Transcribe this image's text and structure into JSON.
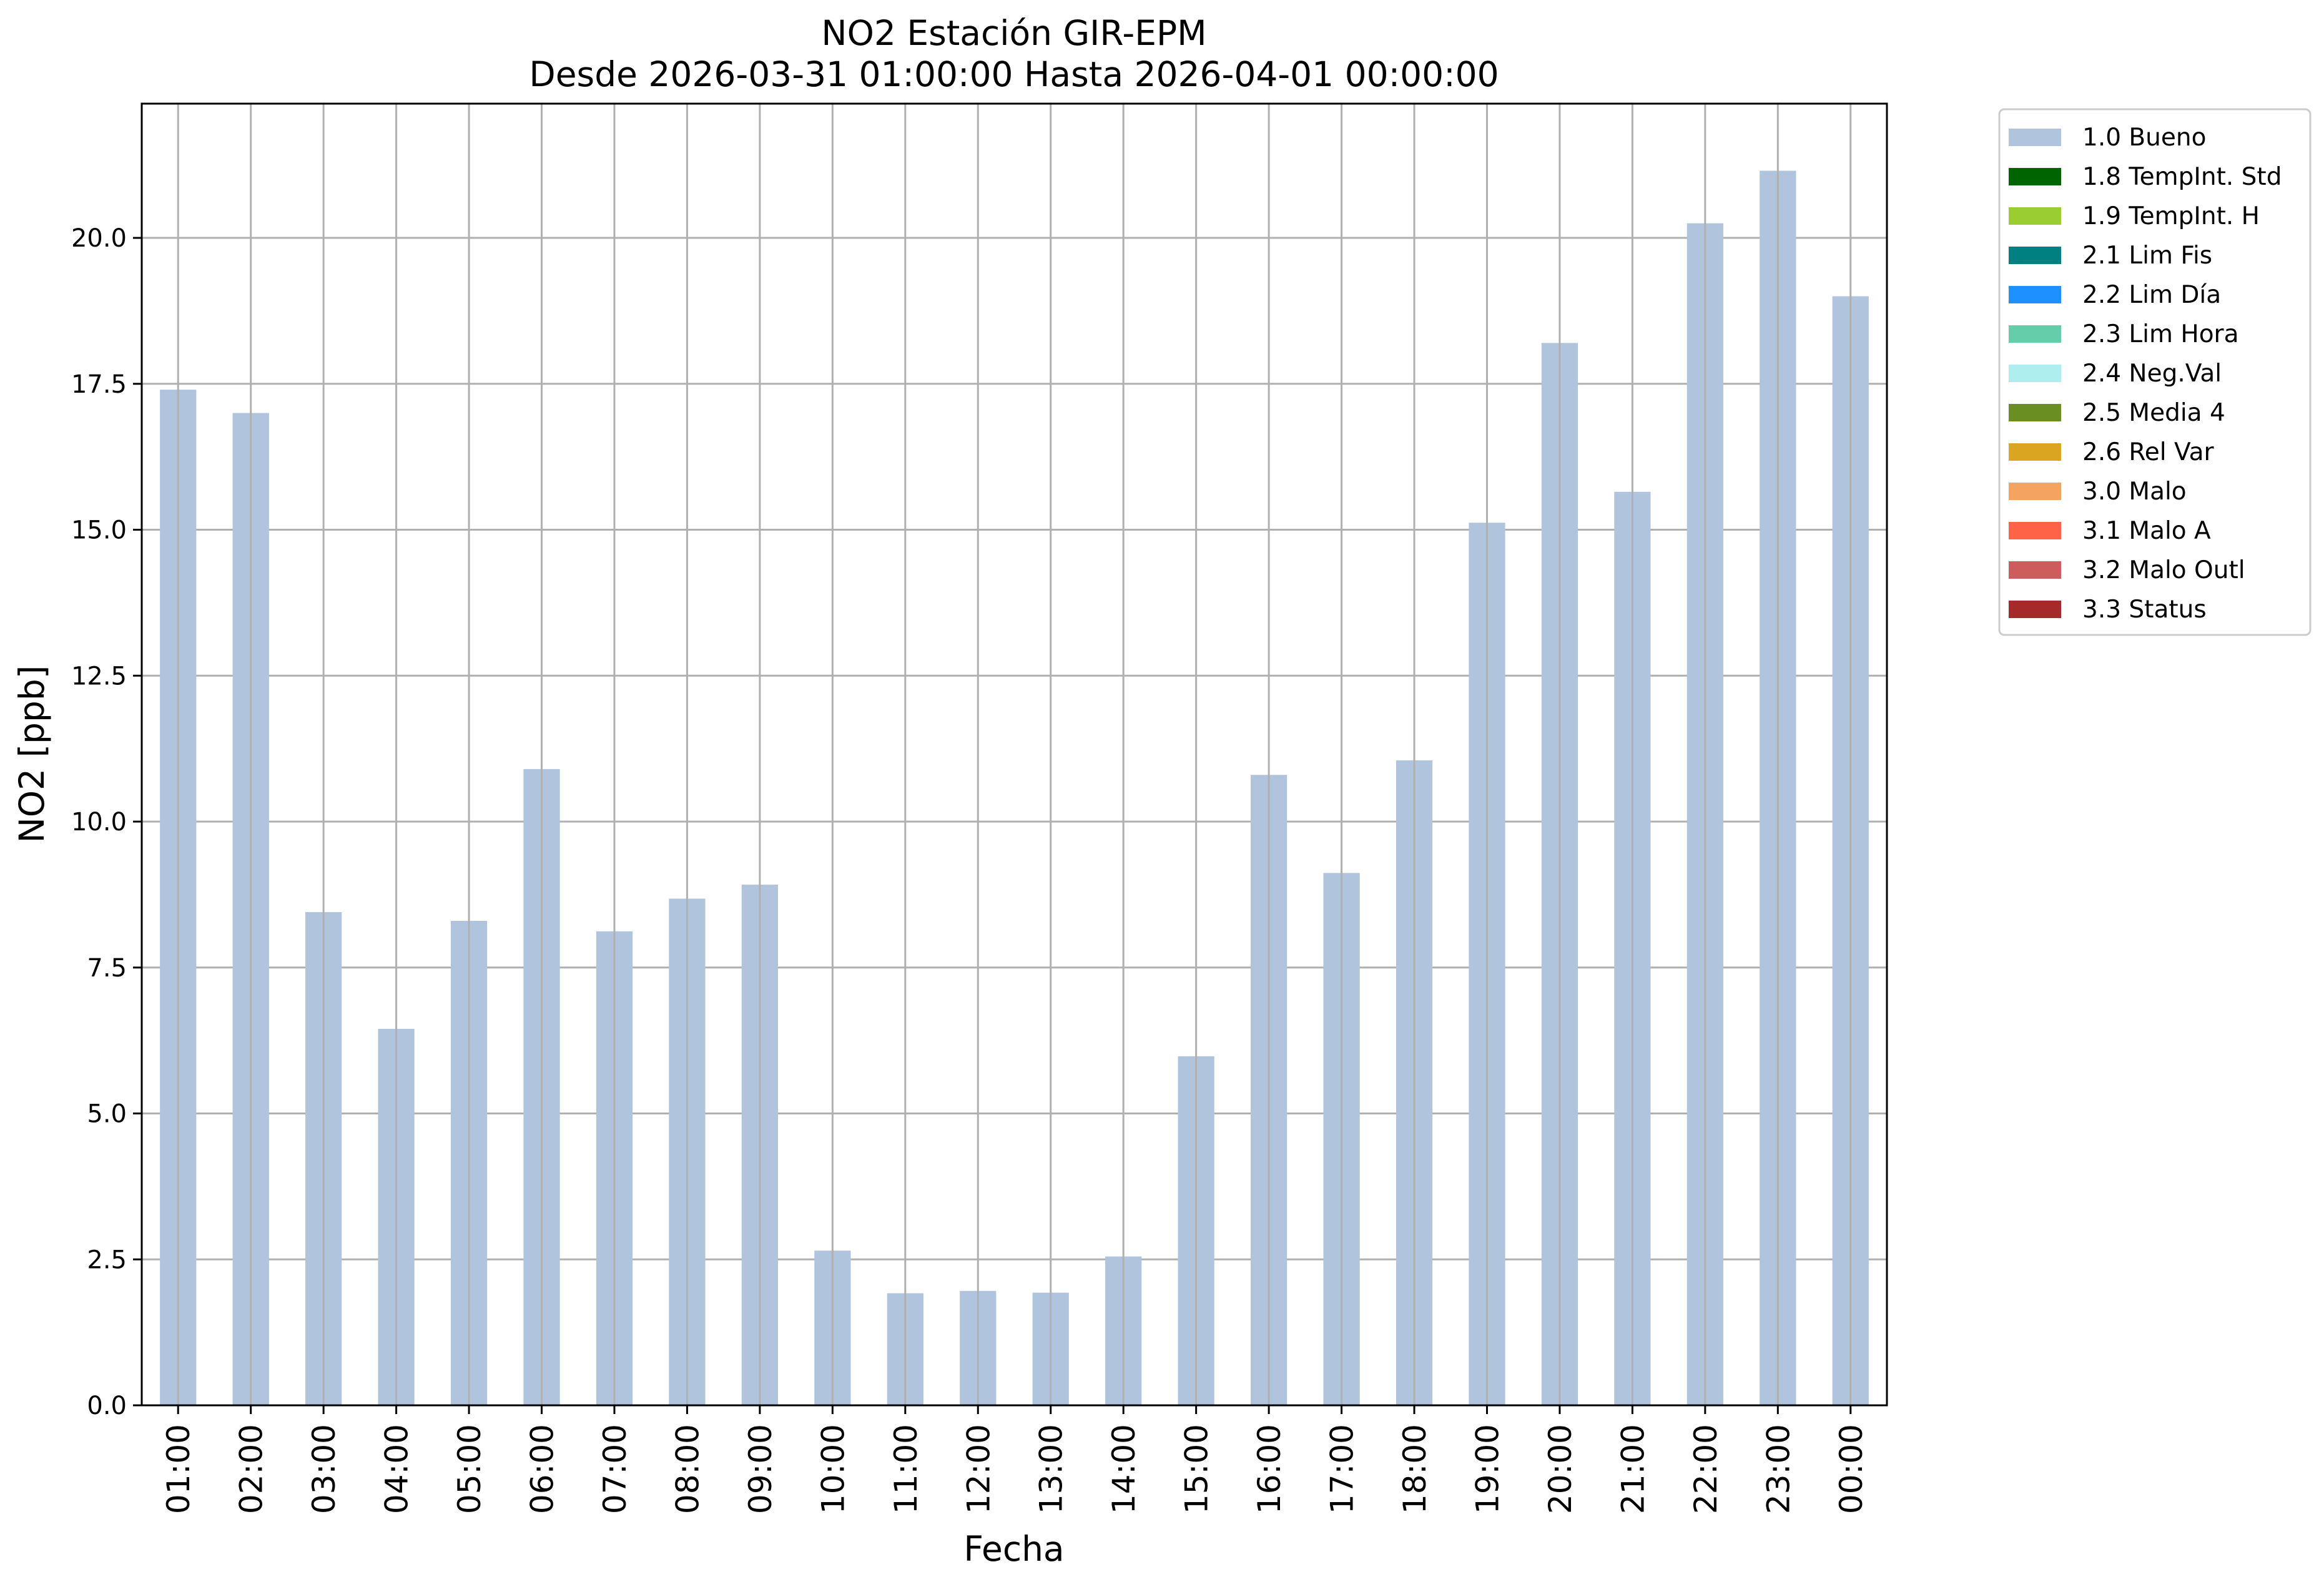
{
  "chart_data": {
    "type": "bar",
    "title_line1": "NO2 Estación GIR-EPM",
    "title_line2": "Desde 2026-03-31 01:00:00 Hasta 2026-04-01 00:00:00",
    "xlabel": "Fecha",
    "ylabel": "NO2 [ppb]",
    "ylim": [
      0,
      22.3
    ],
    "yticks": [
      "0.0",
      "2.5",
      "5.0",
      "7.5",
      "10.0",
      "12.5",
      "15.0",
      "17.5",
      "20.0"
    ],
    "grid": true,
    "categories": [
      "01:00",
      "02:00",
      "03:00",
      "04:00",
      "05:00",
      "06:00",
      "07:00",
      "08:00",
      "09:00",
      "10:00",
      "11:00",
      "12:00",
      "13:00",
      "14:00",
      "15:00",
      "16:00",
      "17:00",
      "18:00",
      "19:00",
      "20:00",
      "21:00",
      "22:00",
      "23:00",
      "00:00"
    ],
    "series": [
      {
        "name": "1.0 Bueno",
        "color": "#b0c4de",
        "values": [
          17.4,
          17.0,
          8.45,
          6.45,
          8.3,
          10.9,
          8.12,
          8.68,
          8.92,
          2.65,
          1.92,
          1.96,
          1.93,
          2.55,
          5.98,
          10.8,
          9.12,
          11.05,
          15.12,
          18.2,
          15.65,
          20.25,
          21.15,
          19.0
        ]
      }
    ],
    "legend_position": "outside-upper-right",
    "legend": [
      {
        "label": "1.0 Bueno",
        "color": "#b0c4de"
      },
      {
        "label": "1.8 TempInt. Std",
        "color": "#006400"
      },
      {
        "label": "1.9 TempInt. H",
        "color": "#9acd32"
      },
      {
        "label": "2.1 Lim Fis",
        "color": "#008080"
      },
      {
        "label": "2.2 Lim Día",
        "color": "#1e90ff"
      },
      {
        "label": "2.3 Lim Hora",
        "color": "#66cdaa"
      },
      {
        "label": "2.4 Neg.Val",
        "color": "#afeeee"
      },
      {
        "label": "2.5 Media 4",
        "color": "#6b8e23"
      },
      {
        "label": "2.6 Rel Var",
        "color": "#daa520"
      },
      {
        "label": "3.0 Malo",
        "color": "#f4a460"
      },
      {
        "label": "3.1 Malo A",
        "color": "#ff6347"
      },
      {
        "label": "3.2 Malo Outl",
        "color": "#cd5c5c"
      },
      {
        "label": "3.3 Status",
        "color": "#a52a2a"
      }
    ]
  }
}
